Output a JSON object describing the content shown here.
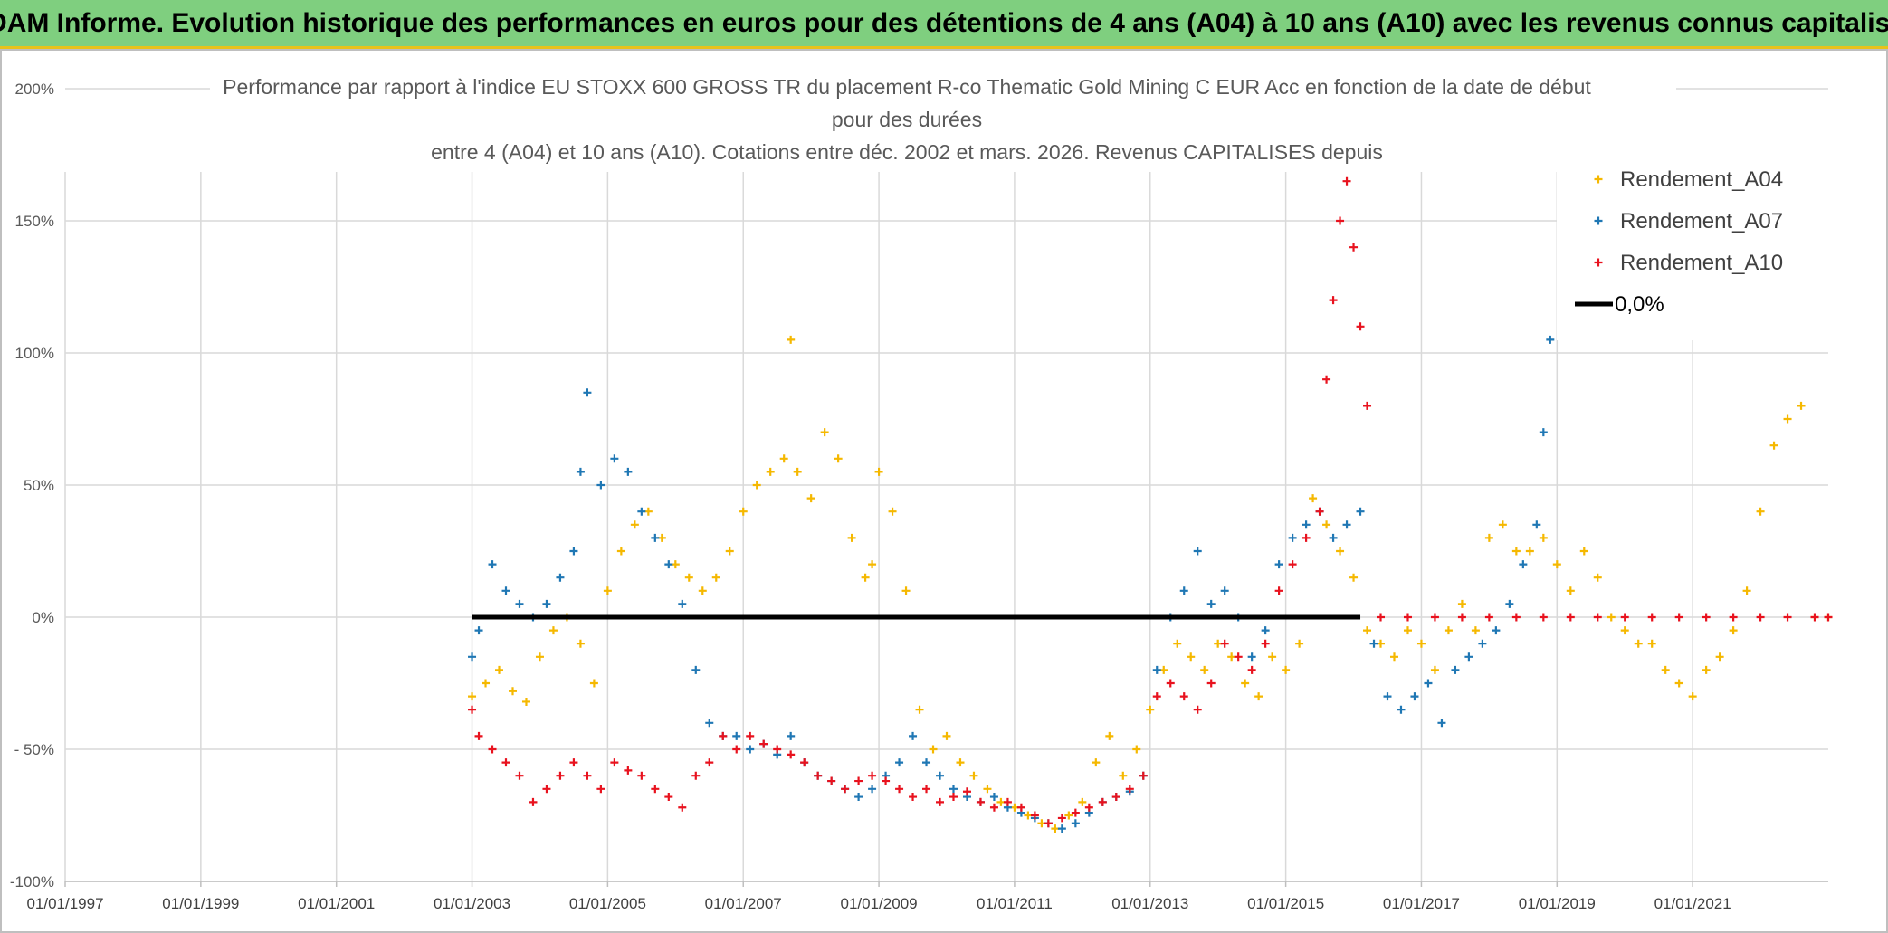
{
  "banner": {
    "title": "ADAM Informe. Evolution historique des performances en euros pour des détentions de 4 ans (A04) à 10 ans (A10) avec les revenus connus capitalisés",
    "bg_color": "#7fcf7f",
    "accent_color": "#e8c21a"
  },
  "chart_data": {
    "type": "scatter",
    "title_lines": [
      "Performance par rapport à l'indice EU STOXX 600 GROSS TR  du placement R-co Thematic Gold Mining C EUR Acc en fonction de la date de début",
      "pour des durées",
      "entre 4 (A04) et 10 ans (A10). Cotations entre déc. 2002 et mars. 2026. Revenus CAPITALISES depuis"
    ],
    "xlabel": "",
    "ylabel": "",
    "xlim": [
      1997.0,
      2023.0
    ],
    "ylim": [
      -100,
      200
    ],
    "x_ticks": [
      {
        "x": 1997,
        "label": "01/01/1997"
      },
      {
        "x": 1999,
        "label": "01/01/1999"
      },
      {
        "x": 2001,
        "label": "01/01/2001"
      },
      {
        "x": 2003,
        "label": "01/01/2003"
      },
      {
        "x": 2005,
        "label": "01/01/2005"
      },
      {
        "x": 2007,
        "label": "01/01/2007"
      },
      {
        "x": 2009,
        "label": "01/01/2009"
      },
      {
        "x": 2011,
        "label": "01/01/2011"
      },
      {
        "x": 2013,
        "label": "01/01/2013"
      },
      {
        "x": 2015,
        "label": "01/01/2015"
      },
      {
        "x": 2017,
        "label": "01/01/2017"
      },
      {
        "x": 2019,
        "label": "01/01/2019"
      },
      {
        "x": 2021,
        "label": "01/01/2021"
      }
    ],
    "y_ticks": [
      {
        "y": 200,
        "label": "200%"
      },
      {
        "y": 150,
        "label": "150%"
      },
      {
        "y": 100,
        "label": "100%"
      },
      {
        "y": 50,
        "label": "50%"
      },
      {
        "y": 0,
        "label": "0%"
      },
      {
        "y": -50,
        "label": "- 50%"
      },
      {
        "y": -100,
        "label": "-100%"
      }
    ],
    "grid": true,
    "legend_position": "top-right",
    "series": [
      {
        "name": "Rendement_A04",
        "color": "#f5b800",
        "marker": "+",
        "x": [
          2003.0,
          2003.2,
          2003.4,
          2003.6,
          2003.8,
          2004.0,
          2004.2,
          2004.4,
          2004.6,
          2004.8,
          2005.0,
          2005.2,
          2005.4,
          2005.6,
          2005.8,
          2006.0,
          2006.2,
          2006.4,
          2006.6,
          2006.8,
          2007.0,
          2007.2,
          2007.4,
          2007.6,
          2007.7,
          2007.8,
          2008.0,
          2008.2,
          2008.4,
          2008.6,
          2008.8,
          2008.9,
          2009.0,
          2009.2,
          2009.4,
          2009.6,
          2009.8,
          2010.0,
          2010.2,
          2010.4,
          2010.6,
          2010.8,
          2011.0,
          2011.2,
          2011.4,
          2011.6,
          2011.8,
          2012.0,
          2012.2,
          2012.4,
          2012.6,
          2012.8,
          2013.0,
          2013.2,
          2013.4,
          2013.6,
          2013.8,
          2014.0,
          2014.2,
          2014.4,
          2014.6,
          2014.8,
          2015.0,
          2015.2,
          2015.4,
          2015.6,
          2015.8,
          2016.0,
          2016.2,
          2016.4,
          2016.6,
          2016.8,
          2017.0,
          2017.2,
          2017.4,
          2017.6,
          2017.8,
          2018.0,
          2018.2,
          2018.4,
          2018.6,
          2018.8,
          2019.0,
          2019.2,
          2019.4,
          2019.6,
          2019.8,
          2020.0,
          2020.2,
          2020.4,
          2020.6,
          2020.8,
          2021.0,
          2021.2,
          2021.4,
          2021.6,
          2021.8,
          2022.0,
          2022.2,
          2022.4,
          2022.6,
          2022.8,
          2023.0
        ],
        "y": [
          -30,
          -25,
          -20,
          -28,
          -32,
          -15,
          -5,
          0,
          -10,
          -25,
          10,
          25,
          35,
          40,
          30,
          20,
          15,
          10,
          15,
          25,
          40,
          50,
          55,
          60,
          105,
          55,
          45,
          70,
          60,
          30,
          15,
          20,
          55,
          40,
          10,
          -35,
          -50,
          -45,
          -55,
          -60,
          -65,
          -70,
          -72,
          -75,
          -78,
          -80,
          -75,
          -70,
          -55,
          -45,
          -60,
          -50,
          -35,
          -20,
          -10,
          -15,
          -20,
          -10,
          -15,
          -25,
          -30,
          -15,
          -20,
          -10,
          45,
          35,
          25,
          15,
          -5,
          -10,
          -15,
          -5,
          -10,
          -20,
          -5,
          5,
          -5,
          30,
          35,
          25,
          25,
          30,
          20,
          10,
          25,
          15,
          0,
          -5,
          -10,
          -10,
          -20,
          -25,
          -30,
          -20,
          -15,
          -5,
          10,
          40,
          65,
          75,
          80,
          0,
          0
        ]
      },
      {
        "name": "Rendement_A07",
        "color": "#1f77b4",
        "marker": "+",
        "x": [
          2003.0,
          2003.1,
          2003.3,
          2003.5,
          2003.7,
          2003.9,
          2004.1,
          2004.3,
          2004.5,
          2004.6,
          2004.7,
          2004.9,
          2005.1,
          2005.3,
          2005.5,
          2005.7,
          2005.9,
          2006.1,
          2006.3,
          2006.5,
          2006.7,
          2006.9,
          2007.1,
          2007.3,
          2007.5,
          2007.7,
          2007.9,
          2008.1,
          2008.3,
          2008.5,
          2008.7,
          2008.9,
          2009.1,
          2009.3,
          2009.5,
          2009.7,
          2009.9,
          2010.1,
          2010.3,
          2010.5,
          2010.7,
          2010.9,
          2011.1,
          2011.3,
          2011.5,
          2011.7,
          2011.9,
          2012.1,
          2012.3,
          2012.5,
          2012.7,
          2012.9,
          2013.1,
          2013.3,
          2013.5,
          2013.7,
          2013.9,
          2014.1,
          2014.3,
          2014.5,
          2014.7,
          2014.9,
          2015.1,
          2015.3,
          2015.5,
          2015.7,
          2015.9,
          2016.1,
          2016.3,
          2016.5,
          2016.7,
          2016.9,
          2017.1,
          2017.3,
          2017.5,
          2017.7,
          2017.9,
          2018.1,
          2018.3,
          2018.5,
          2018.7,
          2018.8,
          2018.9
        ],
        "y": [
          -15,
          -5,
          20,
          10,
          5,
          0,
          5,
          15,
          25,
          55,
          85,
          50,
          60,
          55,
          40,
          30,
          20,
          5,
          -20,
          -40,
          -45,
          -45,
          -50,
          -48,
          -52,
          -45,
          -55,
          -60,
          -62,
          -65,
          -68,
          -65,
          -60,
          -55,
          -45,
          -55,
          -60,
          -65,
          -68,
          -70,
          -68,
          -72,
          -74,
          -76,
          -78,
          -80,
          -78,
          -74,
          -70,
          -68,
          -66,
          -60,
          -20,
          0,
          10,
          25,
          5,
          10,
          0,
          -15,
          -5,
          20,
          30,
          35,
          40,
          30,
          35,
          40,
          -10,
          -30,
          -35,
          -30,
          -25,
          -40,
          -20,
          -15,
          -10,
          -5,
          5,
          20,
          35,
          70,
          105
        ]
      },
      {
        "name": "Rendement_A10",
        "color": "#e8121e",
        "marker": "+",
        "x": [
          2003.0,
          2003.1,
          2003.3,
          2003.5,
          2003.7,
          2003.9,
          2004.1,
          2004.3,
          2004.5,
          2004.7,
          2004.9,
          2005.1,
          2005.3,
          2005.5,
          2005.7,
          2005.9,
          2006.1,
          2006.3,
          2006.5,
          2006.7,
          2006.9,
          2007.1,
          2007.3,
          2007.5,
          2007.7,
          2007.9,
          2008.1,
          2008.3,
          2008.5,
          2008.7,
          2008.9,
          2009.1,
          2009.3,
          2009.5,
          2009.7,
          2009.9,
          2010.1,
          2010.3,
          2010.5,
          2010.7,
          2010.9,
          2011.1,
          2011.3,
          2011.5,
          2011.7,
          2011.9,
          2012.1,
          2012.3,
          2012.5,
          2012.7,
          2012.9,
          2013.1,
          2013.3,
          2013.5,
          2013.7,
          2013.9,
          2014.1,
          2014.3,
          2014.5,
          2014.7,
          2014.9,
          2015.1,
          2015.3,
          2015.5,
          2015.6,
          2015.7,
          2015.8,
          2015.9,
          2016.0,
          2016.1,
          2016.2,
          2016.4,
          2016.8,
          2017.2,
          2017.6,
          2018.0,
          2018.4,
          2018.8,
          2019.2,
          2019.6,
          2020.0,
          2020.4,
          2020.8,
          2021.2,
          2021.6,
          2022.0,
          2022.4,
          2022.8,
          2023.0
        ],
        "y": [
          -35,
          -45,
          -50,
          -55,
          -60,
          -70,
          -65,
          -60,
          -55,
          -60,
          -65,
          -55,
          -58,
          -60,
          -65,
          -68,
          -72,
          -60,
          -55,
          -45,
          -50,
          -45,
          -48,
          -50,
          -52,
          -55,
          -60,
          -62,
          -65,
          -62,
          -60,
          -62,
          -65,
          -68,
          -65,
          -70,
          -68,
          -66,
          -70,
          -72,
          -70,
          -72,
          -75,
          -78,
          -76,
          -74,
          -72,
          -70,
          -68,
          -65,
          -60,
          -30,
          -25,
          -30,
          -35,
          -25,
          -10,
          -15,
          -20,
          -10,
          10,
          20,
          30,
          40,
          90,
          120,
          150,
          165,
          140,
          110,
          80,
          0,
          0,
          0,
          0,
          0,
          0,
          0,
          0,
          0,
          0,
          0,
          0,
          0,
          0,
          0,
          0,
          0,
          0
        ]
      },
      {
        "name": "0,0%",
        "color": "#000000",
        "marker": "line",
        "x": [
          2003.0,
          2016.1
        ],
        "y": [
          0,
          0
        ]
      }
    ]
  }
}
